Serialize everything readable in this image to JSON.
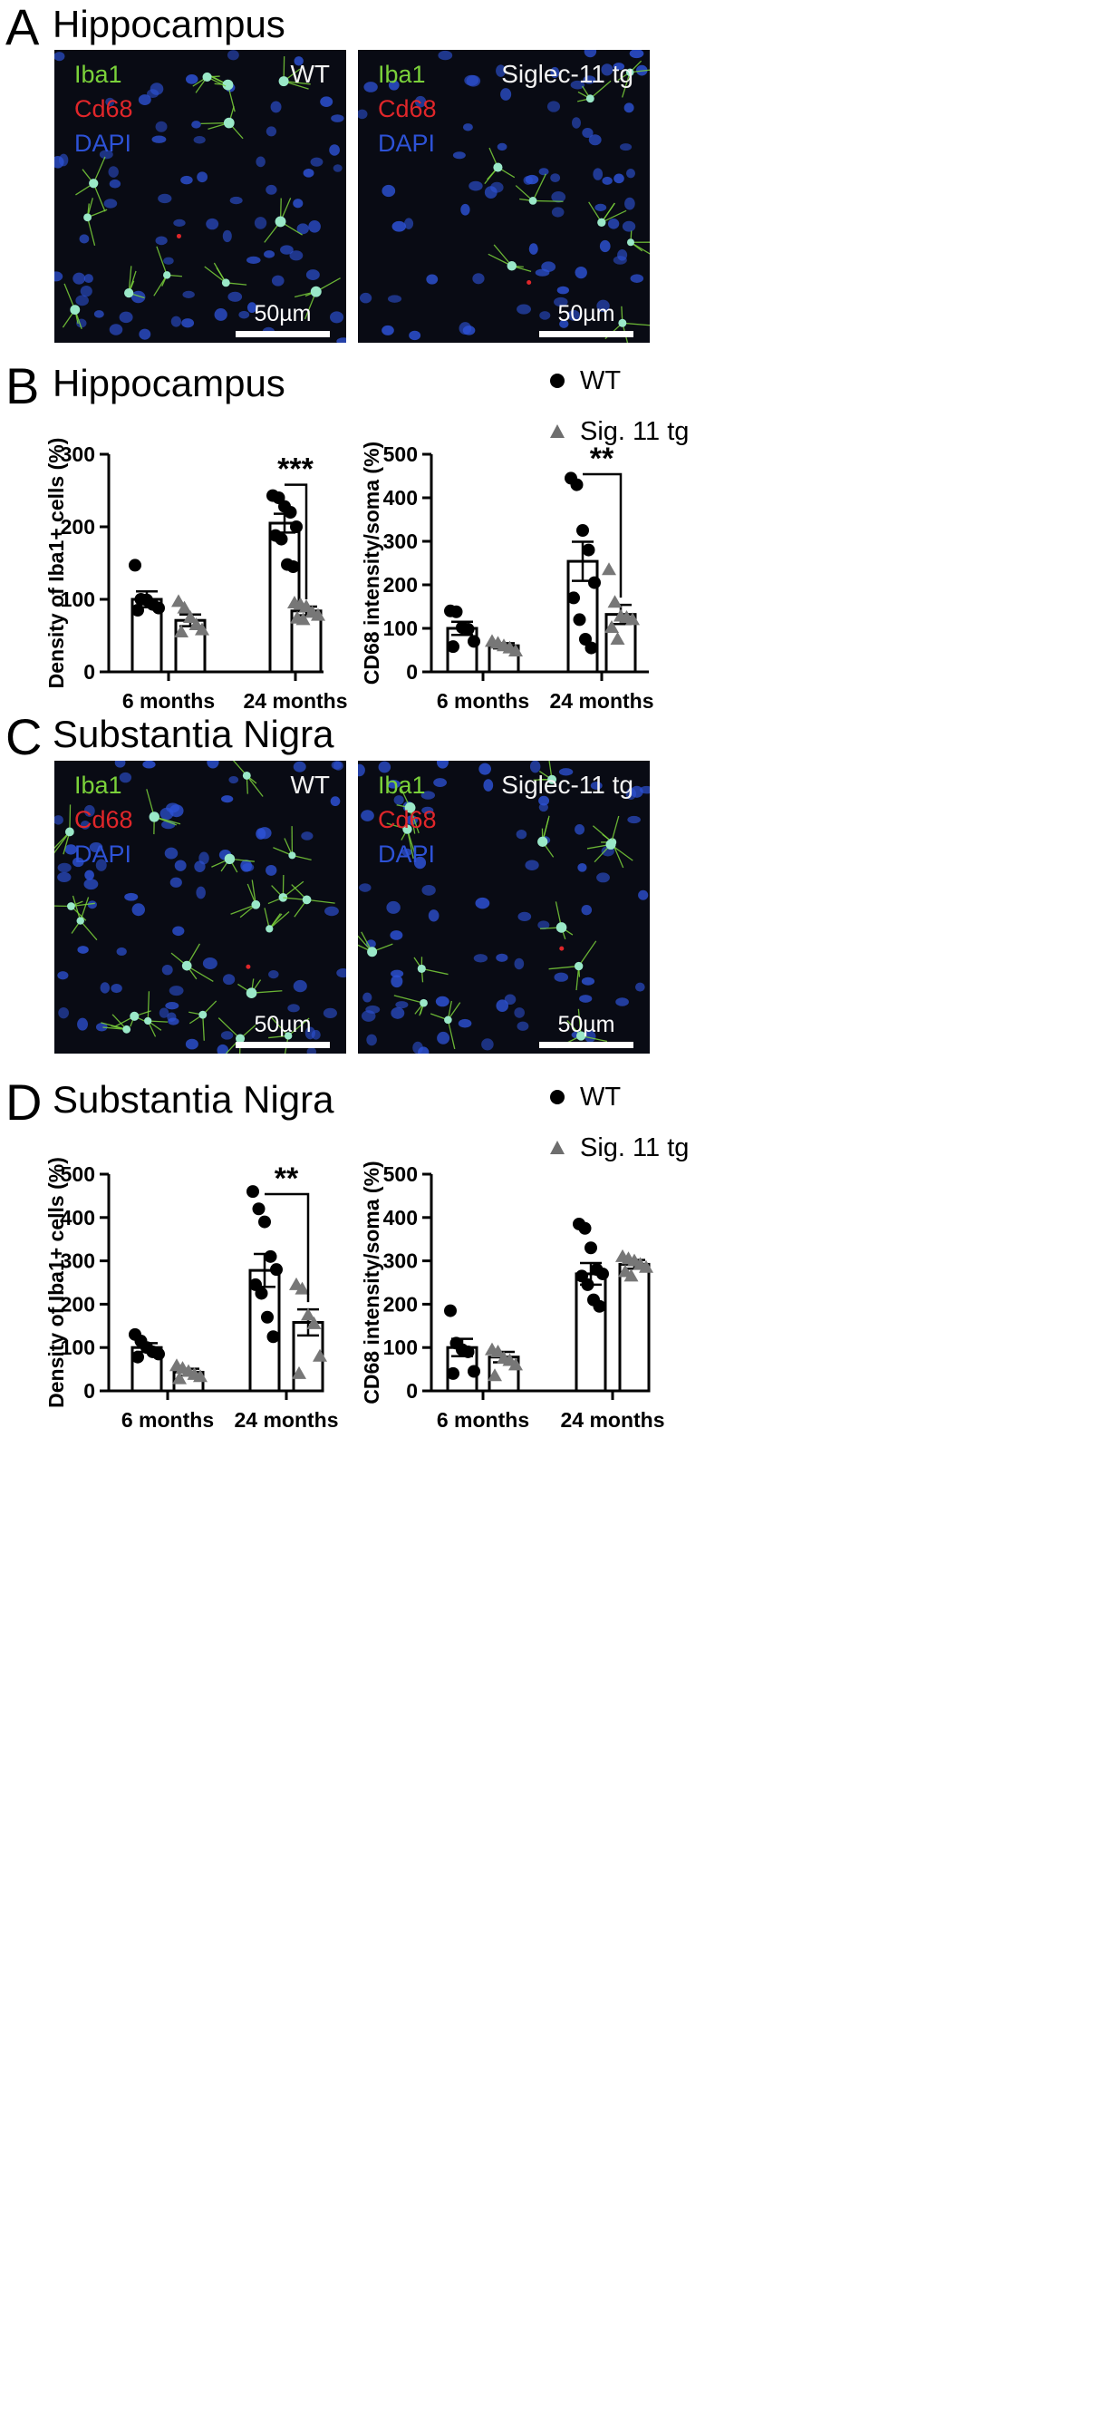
{
  "panels": {
    "A": {
      "letter": "A",
      "title": "Hippocampus"
    },
    "B": {
      "letter": "B",
      "title": "Hippocampus"
    },
    "C": {
      "letter": "C",
      "title": "Substantia Nigra"
    },
    "D": {
      "letter": "D",
      "title": "Substantia Nigra"
    }
  },
  "micrographs": {
    "channels": {
      "iba1": "Iba1",
      "cd68_A": "Cd68",
      "cd68_C_wt": "Cd68",
      "cd68_C_tg": "Cd68",
      "dapi": "DAPI"
    },
    "genotype_wt": "WT",
    "genotype_tg": "Siglec-11 tg",
    "scale": "50µm",
    "colors": {
      "iba1": "#7ad13a",
      "cd68": "#e0262a",
      "dapi": "#2d52d6",
      "background": "#090b14"
    }
  },
  "legend": {
    "wt": "WT",
    "tg": "Sig. 11 tg"
  },
  "chart_data": [
    {
      "id": "B-left",
      "type": "bar",
      "panel": "B",
      "categories": [
        "6 months",
        "24 months"
      ],
      "series": [
        {
          "name": "WT",
          "values": [
            100,
            205
          ],
          "sem": [
            11,
            13
          ],
          "marker": "circle",
          "points": [
            [
              147,
              100,
              99,
              93,
              88,
              85
            ],
            [
              243,
              240,
              228,
              220,
              200,
              188,
              183,
              148,
              145
            ]
          ]
        },
        {
          "name": "Sig. 11 tg",
          "values": [
            71,
            84
          ],
          "sem": [
            8,
            6
          ],
          "marker": "triangle",
          "points": [
            [
              97,
              88,
              75,
              65,
              58,
              55
            ],
            [
              95,
              93,
              90,
              82,
              78,
              74,
              72
            ]
          ]
        }
      ],
      "ylabel": "Density of Iba1+ cells (%)",
      "ylim": [
        0,
        300
      ],
      "yticks": [
        0,
        100,
        200,
        300
      ],
      "significance": [
        {
          "category": 1,
          "label": "***"
        }
      ]
    },
    {
      "id": "B-right",
      "type": "bar",
      "panel": "B",
      "categories": [
        "6 months",
        "24 months"
      ],
      "series": [
        {
          "name": "WT",
          "values": [
            100,
            254
          ],
          "sem": [
            15,
            45
          ],
          "marker": "circle",
          "points": [
            [
              140,
              138,
              102,
              98,
              70,
              58
            ],
            [
              445,
              430,
              325,
              280,
              205,
              170,
              120,
              75,
              55
            ]
          ]
        },
        {
          "name": "Sig. 11 tg",
          "values": [
            60,
            132
          ],
          "sem": [
            6,
            22
          ],
          "marker": "triangle",
          "points": [
            [
              70,
              66,
              60,
              55,
              48
            ],
            [
              235,
              160,
              128,
              125,
              120,
              102,
              75
            ]
          ]
        }
      ],
      "ylabel": "CD68 intensity/soma (%)",
      "ylim": [
        0,
        500
      ],
      "yticks": [
        0,
        100,
        200,
        300,
        400,
        500
      ],
      "significance": [
        {
          "category": 1,
          "label": "**"
        }
      ]
    },
    {
      "id": "D-left",
      "type": "bar",
      "panel": "D",
      "categories": [
        "6 months",
        "24 months"
      ],
      "series": [
        {
          "name": "WT",
          "values": [
            100,
            278
          ],
          "sem": [
            10,
            38
          ],
          "marker": "circle",
          "points": [
            [
              130,
              115,
              100,
              90,
              85,
              78
            ],
            [
              460,
              420,
              390,
              310,
              280,
              245,
              225,
              170,
              125
            ]
          ]
        },
        {
          "name": "Sig. 11 tg",
          "values": [
            43,
            158
          ],
          "sem": [
            8,
            30
          ],
          "marker": "triangle",
          "points": [
            [
              58,
              52,
              45,
              38,
              33,
              28
            ],
            [
              245,
              235,
              175,
              155,
              80,
              40
            ]
          ]
        }
      ],
      "ylabel": "Density of Iba1+ cells (%)",
      "ylim": [
        0,
        500
      ],
      "yticks": [
        0,
        100,
        200,
        300,
        400,
        500
      ],
      "significance": [
        {
          "category": 1,
          "label": "**"
        }
      ]
    },
    {
      "id": "D-right",
      "type": "bar",
      "panel": "D",
      "categories": [
        "6 months",
        "24 months"
      ],
      "series": [
        {
          "name": "WT",
          "values": [
            100,
            270
          ],
          "sem": [
            20,
            25
          ],
          "marker": "circle",
          "points": [
            [
              185,
              110,
              95,
              90,
              45,
              40
            ],
            [
              385,
              375,
              330,
              280,
              270,
              265,
              245,
              210,
              195
            ]
          ]
        },
        {
          "name": "Sig. 11 tg",
          "values": [
            78,
            292
          ],
          "sem": [
            12,
            10
          ],
          "marker": "triangle",
          "points": [
            [
              95,
              90,
              75,
              70,
              60,
              35
            ],
            [
              310,
              305,
              300,
              292,
              285,
              275,
              265
            ]
          ]
        }
      ],
      "ylabel": "CD68 intensity/soma (%)",
      "ylim": [
        0,
        500
      ],
      "yticks": [
        0,
        100,
        200,
        300,
        400,
        500
      ],
      "significance": []
    }
  ]
}
